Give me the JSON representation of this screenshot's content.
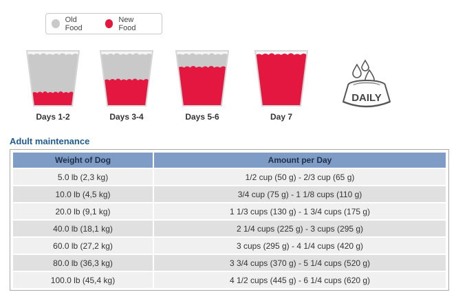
{
  "legend": {
    "old_label": "Old Food",
    "new_label": "New Food",
    "old_color": "#c9c9c9",
    "new_color": "#e3173f"
  },
  "stages": [
    {
      "label": "Days 1-2",
      "new_fraction": 0.25
    },
    {
      "label": "Days 3-4",
      "new_fraction": 0.5
    },
    {
      "label": "Days 5-6",
      "new_fraction": 0.75
    },
    {
      "label": "Day 7",
      "new_fraction": 1.0
    }
  ],
  "daily_badge": {
    "text": "DAILY",
    "icon": "water-bowl-icon"
  },
  "section_title": "Adult maintenance",
  "table": {
    "headers": [
      "Weight of Dog",
      "Amount per Day"
    ],
    "rows": [
      [
        "5.0 lb (2,3 kg)",
        "1/2 cup (50 g) - 2/3 cup (65 g)"
      ],
      [
        "10.0 lb (4,5 kg)",
        "3/4 cup (75 g) - 1 1/8 cups (110 g)"
      ],
      [
        "20.0 lb (9,1 kg)",
        "1 1/3 cups (130 g) - 1 3/4 cups (175 g)"
      ],
      [
        "40.0 lb (18,1 kg)",
        "2 1/4 cups (225 g) - 3 cups (295 g)"
      ],
      [
        "60.0 lb (27,2 kg)",
        "3 cups (295 g) - 4 1/4 cups (420 g)"
      ],
      [
        "80.0 lb (36,3 kg)",
        "3 3/4 cups (370 g) - 5 1/4 cups (520 g)"
      ],
      [
        "100.0 lb (45,4 kg)",
        "4 1/2 cups (445 g) - 6 1/4 cups (620 g)"
      ]
    ]
  }
}
